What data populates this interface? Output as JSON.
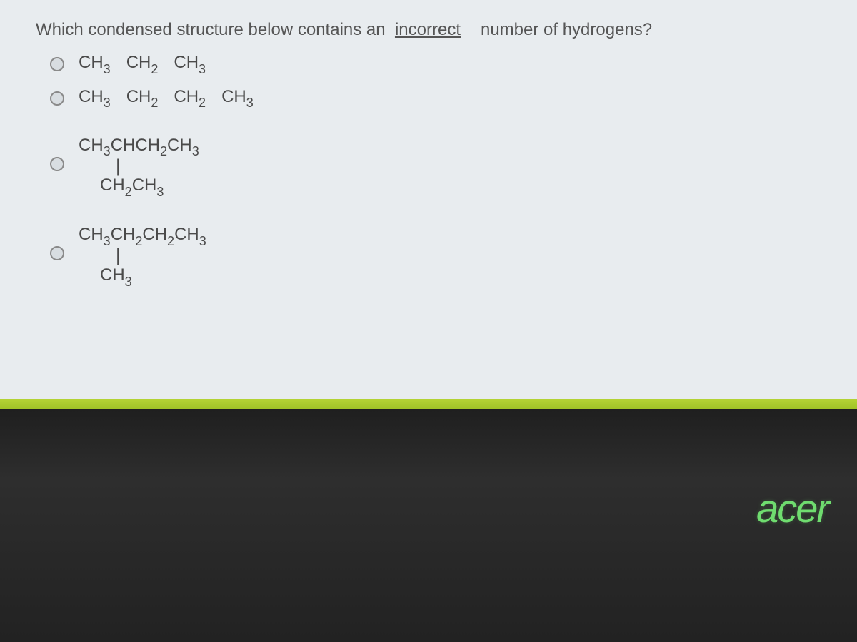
{
  "question": {
    "part1": "Which condensed structure below contains an",
    "emphasis": "incorrect",
    "part2": "number of hydrogens?"
  },
  "options": {
    "a": {
      "groups": [
        "CH3",
        "CH2",
        "CH3"
      ]
    },
    "b": {
      "groups": [
        "CH3",
        "CH2",
        "CH2",
        "CH3"
      ]
    },
    "c": {
      "top": "CH3CHCH2CH3",
      "bottom": "CH2CH3"
    },
    "d": {
      "top": "CH3CH2CH2CH3",
      "bottom": "CH3"
    }
  },
  "brand": "acer",
  "colors": {
    "content_bg": "#e8ecef",
    "text": "#4a4a4a",
    "lime": "#a8c92f",
    "brand_green": "#6fdc6f",
    "bezel": "#222222"
  },
  "fontsize": {
    "question": 24,
    "formula": 24,
    "brand": 56
  }
}
